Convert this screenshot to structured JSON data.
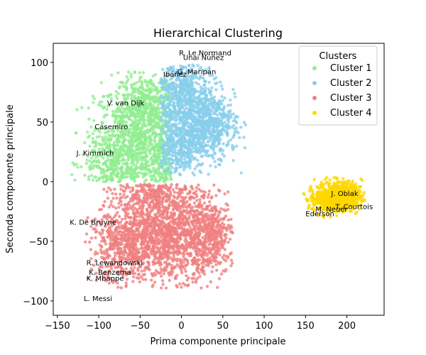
{
  "chart_data": {
    "type": "scatter",
    "title": "Hierarchical Clustering",
    "xlabel": "Prima componente principale",
    "ylabel": "Seconda componente principale",
    "xlim": [
      -155,
      245
    ],
    "ylim": [
      -112,
      116
    ],
    "xticks": [
      -150,
      -100,
      -50,
      0,
      50,
      100,
      150,
      200
    ],
    "yticks": [
      -100,
      -50,
      0,
      50,
      100
    ],
    "legend": {
      "title": "Clusters",
      "placement": "top-right"
    },
    "series": [
      {
        "name": "Cluster 1",
        "color": "#90ee90",
        "blobs": [
          {
            "cx": -55,
            "cy": 35,
            "sx": 25,
            "sy": 25,
            "n": 900
          },
          {
            "cx": -40,
            "cy": 65,
            "sx": 15,
            "sy": 12,
            "n": 300
          },
          {
            "cx": -85,
            "cy": 15,
            "sx": 18,
            "sy": 15,
            "n": 300
          },
          {
            "cx": -25,
            "cy": 15,
            "sx": 10,
            "sy": 15,
            "n": 200
          }
        ],
        "bounds": {
          "xmin": -135,
          "xmax": -12,
          "ymin": 0,
          "ymax": 92
        }
      },
      {
        "name": "Cluster 2",
        "color": "#87ceeb",
        "blobs": [
          {
            "cx": 10,
            "cy": 55,
            "sx": 22,
            "sy": 22,
            "n": 1000
          },
          {
            "cx": 35,
            "cy": 45,
            "sx": 18,
            "sy": 12,
            "n": 300
          },
          {
            "cx": -5,
            "cy": 80,
            "sx": 15,
            "sy": 10,
            "n": 200
          },
          {
            "cx": -5,
            "cy": 25,
            "sx": 12,
            "sy": 12,
            "n": 200
          }
        ],
        "bounds": {
          "xmin": -25,
          "xmax": 78,
          "ymin": 5,
          "ymax": 98
        }
      },
      {
        "name": "Cluster 3",
        "color": "#f08080",
        "blobs": [
          {
            "cx": -20,
            "cy": -45,
            "sx": 35,
            "sy": 18,
            "n": 1400
          },
          {
            "cx": -70,
            "cy": -55,
            "sx": 20,
            "sy": 15,
            "n": 350
          },
          {
            "cx": 30,
            "cy": -45,
            "sx": 18,
            "sy": 15,
            "n": 400
          },
          {
            "cx": -30,
            "cy": -10,
            "sx": 25,
            "sy": 8,
            "n": 300
          }
        ],
        "bounds": {
          "xmin": -125,
          "xmax": 62,
          "ymin": -90,
          "ymax": -2
        }
      },
      {
        "name": "Cluster 4",
        "color": "#ffd700",
        "blobs": [
          {
            "cx": 190,
            "cy": -12,
            "sx": 14,
            "sy": 6,
            "n": 700
          },
          {
            "cx": 175,
            "cy": -18,
            "sx": 10,
            "sy": 5,
            "n": 150
          }
        ],
        "bounds": {
          "xmin": 140,
          "xmax": 222,
          "ymin": -35,
          "ymax": 8
        }
      }
    ],
    "annotations": [
      {
        "text": "R. Le Normand",
        "x": -3,
        "y": 106
      },
      {
        "text": "Unai Núñez",
        "x": 2,
        "y": 102
      },
      {
        "text": "G. Maripán",
        "x": -5,
        "y": 90
      },
      {
        "text": "Ibáñez",
        "x": -22,
        "y": 88
      },
      {
        "text": "V. van Dijk",
        "x": -90,
        "y": 64
      },
      {
        "text": "Casemiro",
        "x": -105,
        "y": 44
      },
      {
        "text": "J. Kimmich",
        "x": -127,
        "y": 22
      },
      {
        "text": "K. De Bruyne",
        "x": -135,
        "y": -36
      },
      {
        "text": "R. Lewandowski",
        "x": -115,
        "y": -70
      },
      {
        "text": "K. Benzema",
        "x": -112,
        "y": -78
      },
      {
        "text": "K. Mbappe",
        "x": -115,
        "y": -83
      },
      {
        "text": "L. Messi",
        "x": -118,
        "y": -100
      },
      {
        "text": "J. Oblak",
        "x": 181,
        "y": -12
      },
      {
        "text": "T. Courtois",
        "x": 186,
        "y": -23
      },
      {
        "text": "M. Neuer",
        "x": 162,
        "y": -25
      },
      {
        "text": "Ederson",
        "x": 150,
        "y": -29
      }
    ]
  }
}
